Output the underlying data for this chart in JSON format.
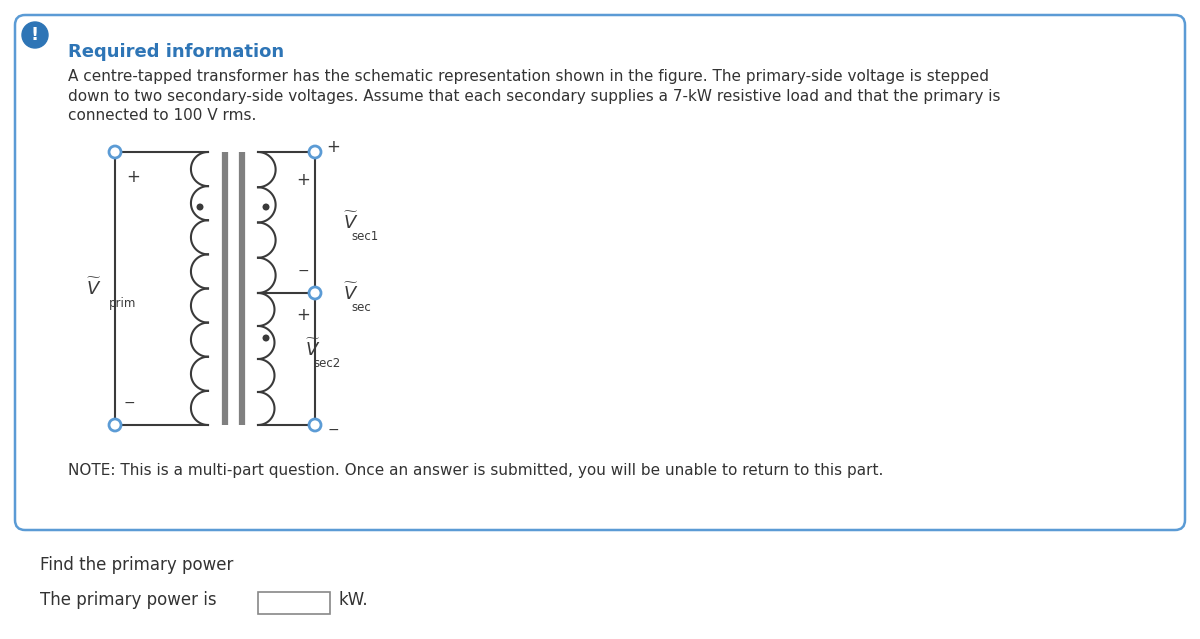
{
  "bg_color": "#ffffff",
  "outer_border_color": "#5b9bd5",
  "required_info_text": "Required information",
  "required_info_color": "#2e75b6",
  "body_line1": "A centre-tapped transformer has the schematic representation shown in the figure. The primary-side voltage is stepped",
  "body_line2": "down to two secondary-side voltages. Assume that each secondary supplies a 7-kW resistive load and that the primary is",
  "body_line3": "connected to 100 V rms.",
  "note_text": "NOTE: This is a multi-part question. Once an answer is submitted, you will be unable to return to this part.",
  "find_text": "Find the primary power",
  "answer_text": "The primary power is",
  "kw_text": "kW.",
  "node_color": "#5b9bd5",
  "wire_color": "#3a3a3a",
  "coil_color": "#3a3a3a",
  "dot_color": "#3a3a3a",
  "label_color": "#3a3a3a",
  "plus_color": "#3a3a3a",
  "minus_color": "#3a3a3a"
}
